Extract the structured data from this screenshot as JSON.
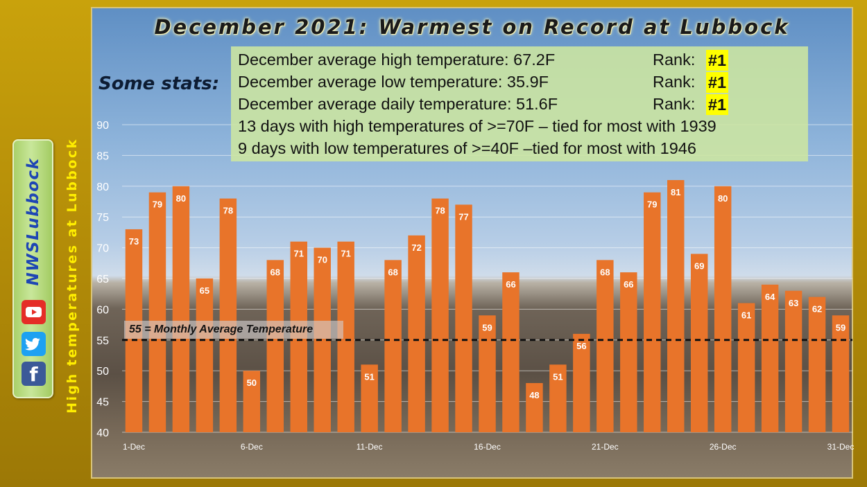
{
  "title": "December 2021: Warmest on Record at Lubbock",
  "stats_heading": "Some stats:",
  "stats": [
    {
      "text": "December average high temperature: 67.2F",
      "rank_label": "Rank:",
      "rank": "#1"
    },
    {
      "text": "December average low temperature: 35.9F",
      "rank_label": "Rank:",
      "rank": "#1"
    },
    {
      "text": "December average daily temperature: 51.6F",
      "rank_label": "Rank:",
      "rank": "#1"
    },
    {
      "text": "13 days with high temperatures of >=70F – tied for most with 1939"
    },
    {
      "text": "9 days with low temperatures of >=40F –tied for most with 1946"
    }
  ],
  "social": {
    "handle": "NWSLubbock",
    "icons": [
      "youtube-icon",
      "twitter-icon",
      "facebook-icon"
    ]
  },
  "colors": {
    "bar": "#e8742a",
    "rank_highlight": "#ffff00",
    "ylabel": "#ffee00",
    "frame": "#b8940a"
  },
  "chart_data": {
    "type": "bar",
    "title": "December 2021: Warmest on Record at Lubbock",
    "ylabel": "High temperatures at Lubbock",
    "ylim": [
      40,
      90
    ],
    "yticks": [
      40,
      45,
      50,
      55,
      60,
      65,
      70,
      75,
      80,
      85,
      90
    ],
    "xtick_labels": [
      "1-Dec",
      "6-Dec",
      "11-Dec",
      "16-Dec",
      "21-Dec",
      "26-Dec",
      "31-Dec"
    ],
    "xtick_days": [
      1,
      6,
      11,
      16,
      21,
      26,
      31
    ],
    "values": [
      73,
      79,
      80,
      65,
      78,
      50,
      68,
      71,
      70,
      71,
      51,
      68,
      72,
      78,
      77,
      59,
      66,
      48,
      51,
      56,
      68,
      66,
      79,
      81,
      69,
      80,
      61,
      64,
      63,
      62,
      59
    ],
    "reference_line": {
      "value": 55,
      "label": "55 = Monthly Average Temperature"
    },
    "grid": true
  }
}
